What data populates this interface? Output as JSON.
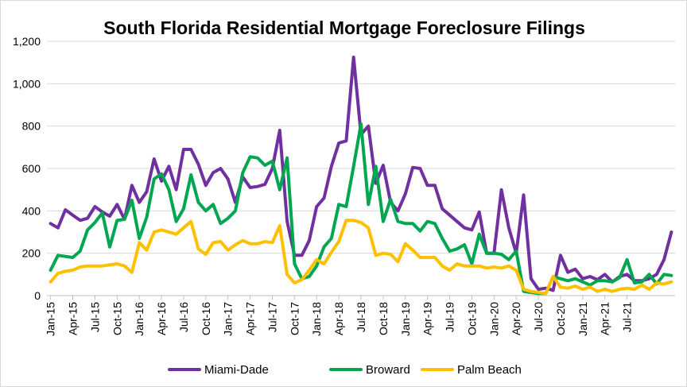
{
  "chart_data": {
    "type": "line",
    "title": "South Florida Residential Mortgage Foreclosure Filings",
    "xlabel": "",
    "ylabel": "",
    "ylim": [
      0,
      1200
    ],
    "yticks": [
      "0",
      "200",
      "400",
      "600",
      "800",
      "1,000",
      "1,200"
    ],
    "x_tick_labels": [
      "Jan-15",
      "Apr-15",
      "Jul-15",
      "Oct-15",
      "Jan-16",
      "Apr-16",
      "Jul-16",
      "Oct-16",
      "Jan-17",
      "Apr-17",
      "Jul-17",
      "Oct-17",
      "Jan-18",
      "Apr-18",
      "Jul-18",
      "Oct-18",
      "Jan-19",
      "Apr-19",
      "Jul-19",
      "Oct-19",
      "Jan-20",
      "Apr-20",
      "Jul-20",
      "Oct-20",
      "Jan-21",
      "Apr-21",
      "Jul-21"
    ],
    "x_start": "Jan-15",
    "x_end": "Oct-21",
    "grid": true,
    "legend_position": "bottom",
    "series": [
      {
        "name": "Miami-Dade",
        "color": "#7030a0",
        "values": [
          340,
          320,
          405,
          380,
          355,
          365,
          420,
          395,
          375,
          430,
          360,
          520,
          440,
          490,
          645,
          540,
          610,
          500,
          690,
          690,
          620,
          520,
          580,
          600,
          550,
          440,
          560,
          510,
          515,
          525,
          600,
          780,
          350,
          190,
          190,
          260,
          420,
          460,
          610,
          720,
          730,
          1125,
          760,
          800,
          530,
          615,
          440,
          400,
          480,
          605,
          600,
          520,
          520,
          410,
          380,
          350,
          320,
          310,
          395,
          200,
          200,
          500,
          320,
          200,
          475,
          80,
          30,
          35,
          25,
          190,
          110,
          125,
          80,
          90,
          75,
          100,
          65,
          90,
          100,
          70,
          70,
          80,
          100,
          170,
          300
        ]
      },
      {
        "name": "Broward",
        "color": "#00a650",
        "values": [
          120,
          190,
          185,
          180,
          210,
          310,
          345,
          390,
          230,
          355,
          360,
          450,
          270,
          370,
          550,
          575,
          500,
          350,
          410,
          570,
          440,
          400,
          430,
          340,
          365,
          400,
          580,
          655,
          650,
          615,
          635,
          500,
          650,
          150,
          80,
          90,
          140,
          230,
          270,
          430,
          420,
          610,
          810,
          430,
          610,
          350,
          455,
          350,
          340,
          340,
          305,
          350,
          340,
          270,
          210,
          220,
          240,
          150,
          290,
          200,
          200,
          195,
          170,
          210,
          20,
          15,
          10,
          10,
          90,
          80,
          70,
          80,
          65,
          50,
          70,
          70,
          65,
          85,
          170,
          60,
          65,
          100,
          55,
          100,
          95
        ]
      },
      {
        "name": "Palm Beach",
        "color": "#ffc000",
        "values": [
          65,
          105,
          115,
          120,
          135,
          140,
          140,
          140,
          145,
          150,
          140,
          110,
          250,
          215,
          300,
          310,
          300,
          290,
          320,
          350,
          220,
          195,
          250,
          255,
          215,
          240,
          260,
          245,
          245,
          255,
          250,
          330,
          100,
          60,
          75,
          120,
          170,
          150,
          205,
          255,
          355,
          355,
          345,
          320,
          190,
          200,
          195,
          160,
          245,
          215,
          180,
          180,
          180,
          140,
          120,
          150,
          140,
          140,
          140,
          130,
          135,
          130,
          140,
          120,
          30,
          20,
          15,
          10,
          90,
          40,
          35,
          45,
          30,
          40,
          20,
          30,
          20,
          30,
          35,
          30,
          50,
          30,
          60,
          55,
          65
        ]
      }
    ]
  }
}
